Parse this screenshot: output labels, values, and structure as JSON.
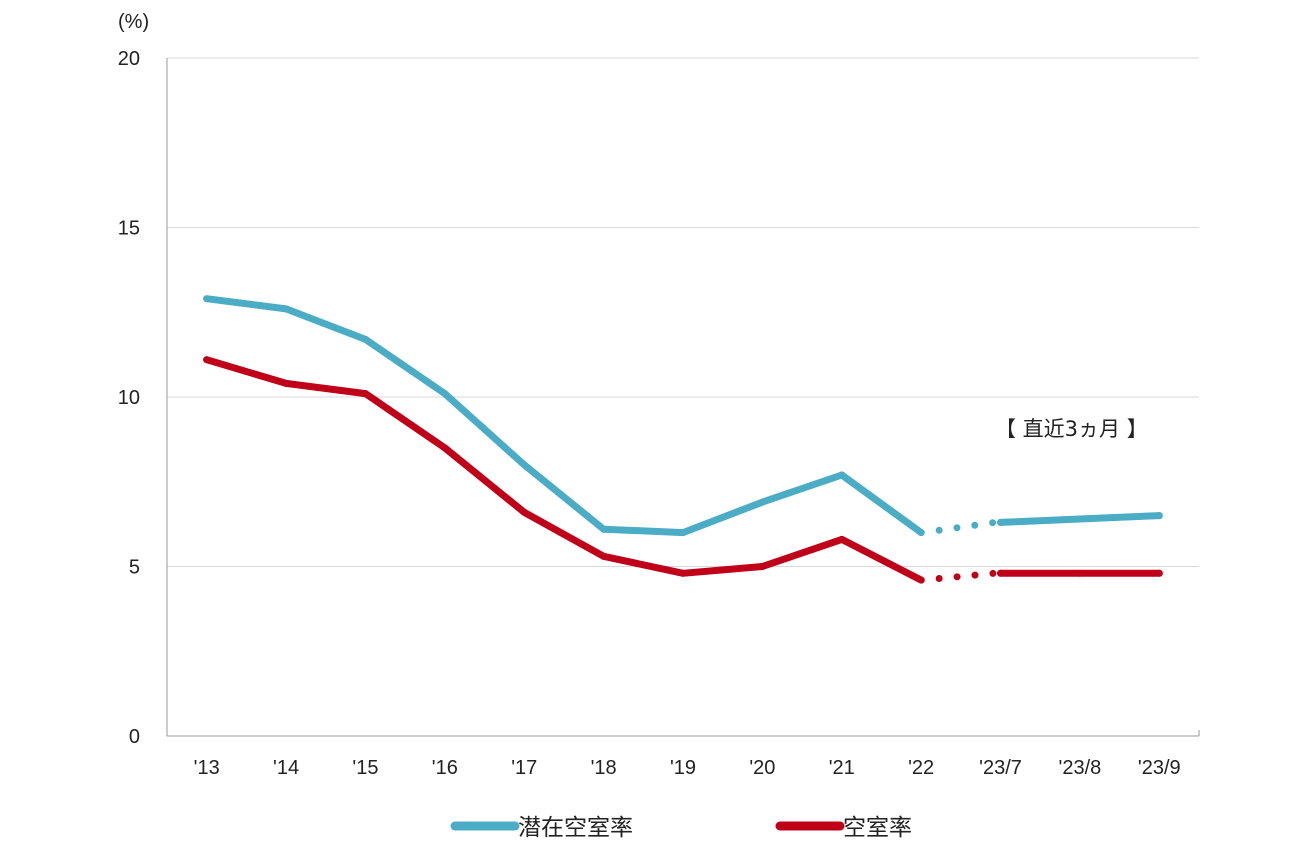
{
  "chart_data": {
    "type": "line",
    "y_unit": "(%)",
    "annotation": "【 直近3ヵ月 】",
    "categories": [
      "'13",
      "'14",
      "'15",
      "'16",
      "'17",
      "'18",
      "'19",
      "'20",
      "'21",
      "'22",
      "'23/7",
      "'23/8",
      "'23/9"
    ],
    "ylim": [
      0,
      20
    ],
    "yticks": [
      0,
      5,
      10,
      15,
      20
    ],
    "grid": true,
    "legend_position": "bottom",
    "series": [
      {
        "name": "潜在空室率",
        "color": "#4bacc6",
        "values": [
          12.9,
          12.6,
          11.7,
          10.1,
          8.0,
          6.1,
          6.0,
          6.9,
          7.7,
          6.0,
          6.3,
          6.4,
          6.5
        ]
      },
      {
        "name": "空室率",
        "color": "#c00018",
        "values": [
          11.1,
          10.4,
          10.1,
          8.5,
          6.6,
          5.3,
          4.8,
          5.0,
          5.8,
          4.6,
          4.8,
          4.8,
          4.8
        ]
      }
    ]
  }
}
